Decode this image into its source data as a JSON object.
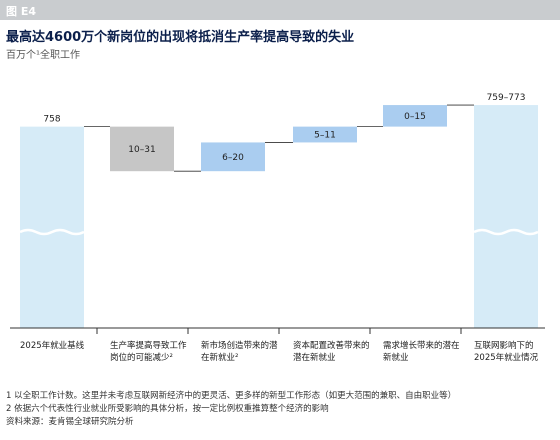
{
  "figure_label": "图 E4",
  "title": "最高达4600万个新岗位的出现将抵消生产率提高导致的失业",
  "subtitle": "百万个¹全职工作",
  "chart_data": {
    "type": "bar",
    "subtype": "waterfall",
    "title": "最高达4600万个新岗位的出现将抵消生产率提高导致的失业",
    "ylabel": "百万个¹全职工作",
    "ylim": [
      0,
      800
    ],
    "grid": false,
    "legend": "none",
    "categories": [
      "2025年就业基线",
      "生产率提高导致工作岗位的可能减少²",
      "新市场创造带来的潜在新就业²",
      "资本配置改善带来的潜在新就业",
      "需求增长带来的潜在新就业",
      "互联网影响下的2025年就业情况"
    ],
    "bars": [
      {
        "label": "758",
        "kind": "total",
        "start": 0,
        "end": 758
      },
      {
        "label": "10–31",
        "kind": "decrease",
        "start": 758,
        "end": 727
      },
      {
        "label": "6–20",
        "kind": "increase",
        "start": 727,
        "end": 747
      },
      {
        "label": "5–11",
        "kind": "increase",
        "start": 747,
        "end": 758
      },
      {
        "label": "0–15",
        "kind": "increase",
        "start": 758,
        "end": 773
      },
      {
        "label": "759–773",
        "kind": "total",
        "start": 0,
        "end": 773
      }
    ],
    "colors": {
      "total": "#d6ebf7",
      "decrease": "#c6c6c6",
      "increase": "#aacdf0",
      "connector": "#333333"
    }
  },
  "footnotes": [
    "1 以全职工作计数。这里并未考虑互联网新经济中的更灵活、更多样的新型工作形态（如更大范围的兼职、自由职业等）",
    "2 依据六个代表性行业就业所受影响的具体分析，按一定比例权重推算整个经济的影响",
    "资料来源：麦肯锡全球研究院分析"
  ]
}
